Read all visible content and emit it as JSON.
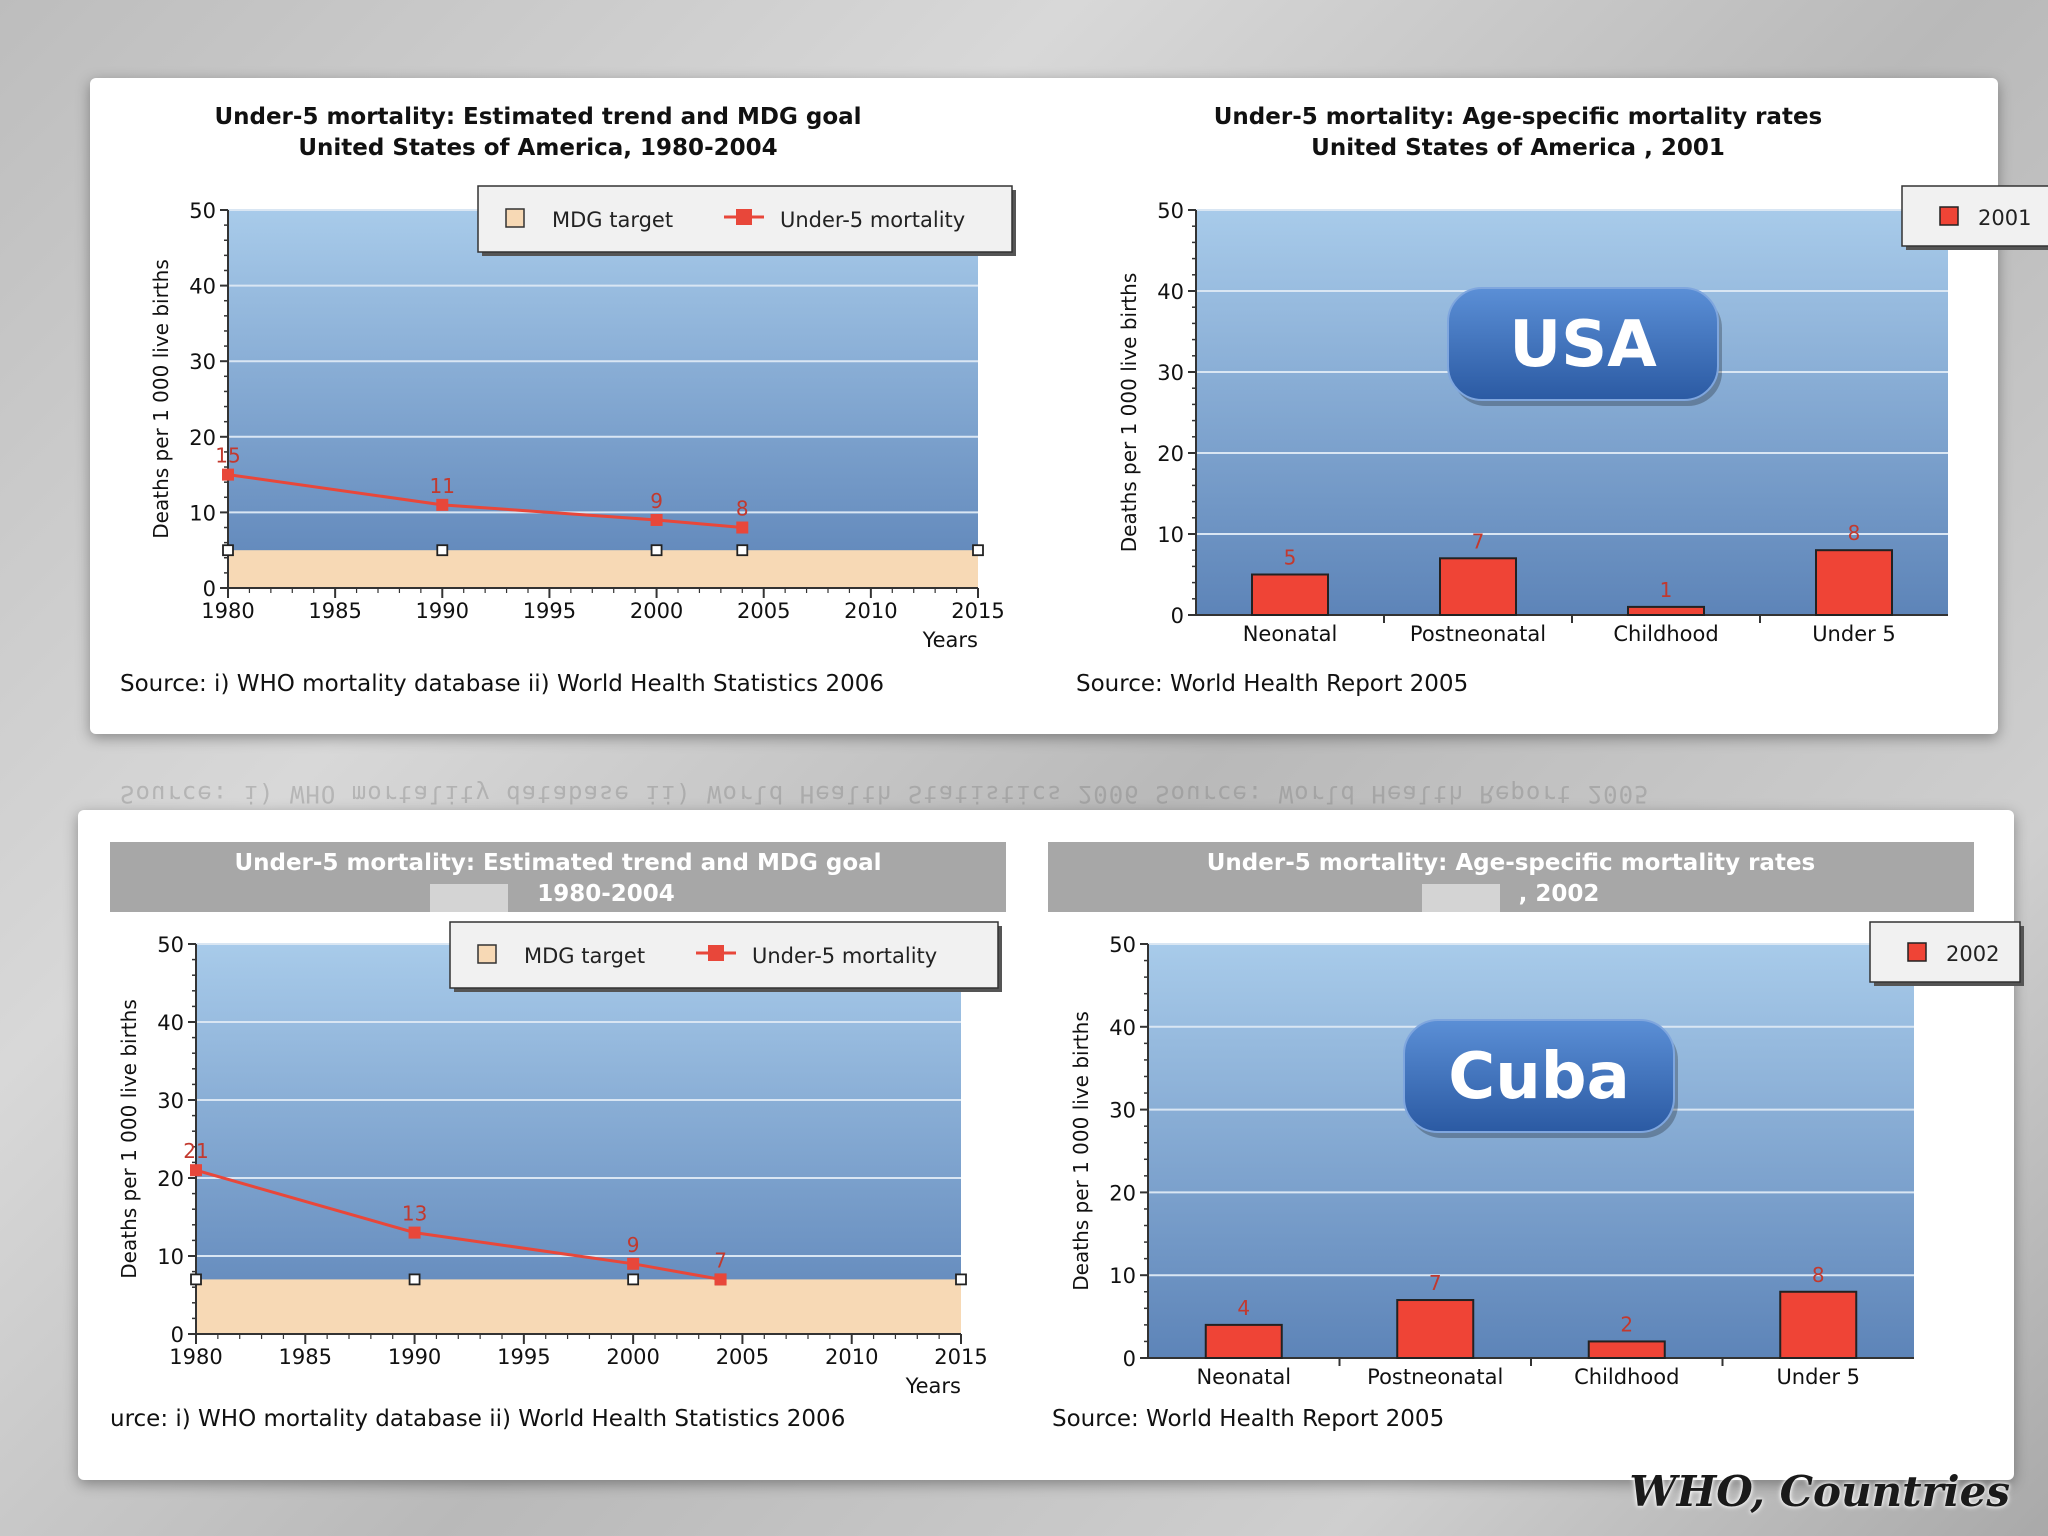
{
  "credit": "WHO, Countries",
  "reflection_text": "Source: i) WHO mortality database ii) World Health Statistics 2006        Source: World Health Report 2005",
  "colors": {
    "bar": "#ef4436",
    "line": "#e8473a",
    "target_fill": "#f7d9b5",
    "plot_top": "#a8cbea",
    "plot_bottom": "#5d84b8",
    "badge": "#3f6db3"
  },
  "chart_data": [
    {
      "id": "usa-trend",
      "type": "line",
      "title": "Under-5 mortality: Estimated trend and MDG goal",
      "subtitle": "United States of America, 1980-2004",
      "ylabel": "Deaths per 1 000 live births",
      "xlabel": "Years",
      "ylim": [
        0,
        50
      ],
      "yticks": [
        0,
        10,
        20,
        30,
        40,
        50
      ],
      "xlim": [
        1980,
        2015
      ],
      "xticks": [
        1980,
        1985,
        1990,
        1995,
        2000,
        2005,
        2010,
        2015
      ],
      "legend": [
        "MDG target",
        "Under-5 mortality"
      ],
      "series": [
        {
          "name": "Under-5 mortality",
          "x": [
            1980,
            1990,
            2000,
            2004
          ],
          "values": [
            15,
            11,
            9,
            8
          ],
          "labels": [
            "15",
            "11",
            "9",
            "8"
          ]
        },
        {
          "name": "MDG target",
          "x": [
            1980,
            1990,
            2000,
            2004,
            2015
          ],
          "values": [
            5,
            5,
            5,
            5,
            5
          ]
        }
      ],
      "source": "Source: i) WHO mortality database ii) World Health Statistics 2006"
    },
    {
      "id": "usa-age",
      "type": "bar",
      "title": "Under-5 mortality: Age-specific mortality rates",
      "subtitle": "United States of America , 2001",
      "ylabel": "Deaths per 1 000 live births",
      "ylim": [
        0,
        50
      ],
      "yticks": [
        0,
        10,
        20,
        30,
        40,
        50
      ],
      "categories": [
        "Neonatal",
        "Postneonatal",
        "Childhood",
        "Under 5"
      ],
      "series": [
        {
          "name": "2001",
          "values": [
            5,
            7,
            1,
            8
          ]
        }
      ],
      "badge": "USA",
      "source": "Source: World Health Report 2005"
    },
    {
      "id": "cuba-trend",
      "type": "line",
      "title": "Under-5 mortality: Estimated trend and MDG goal",
      "subtitle": "1980-2004",
      "ylabel": "Deaths per 1 000 live births",
      "xlabel": "Years",
      "ylim": [
        0,
        50
      ],
      "yticks": [
        0,
        10,
        20,
        30,
        40,
        50
      ],
      "xlim": [
        1980,
        2015
      ],
      "xticks": [
        1980,
        1985,
        1990,
        1995,
        2000,
        2005,
        2010,
        2015
      ],
      "legend": [
        "MDG target",
        "Under-5 mortality"
      ],
      "series": [
        {
          "name": "Under-5 mortality",
          "x": [
            1980,
            1990,
            2000,
            2004
          ],
          "values": [
            21,
            13,
            9,
            7
          ],
          "labels": [
            "21",
            "13",
            "9",
            "7"
          ]
        },
        {
          "name": "MDG target",
          "x": [
            1980,
            1990,
            2000,
            2004,
            2015
          ],
          "values": [
            7,
            7,
            7,
            7,
            7
          ]
        }
      ],
      "source": "urce: i) WHO mortality database ii) World Health Statistics 2006"
    },
    {
      "id": "cuba-age",
      "type": "bar",
      "title": "Under-5 mortality: Age-specific mortality rates",
      "subtitle": ", 2002",
      "ylabel": "Deaths per 1 000 live births",
      "ylim": [
        0,
        50
      ],
      "yticks": [
        0,
        10,
        20,
        30,
        40,
        50
      ],
      "categories": [
        "Neonatal",
        "Postneonatal",
        "Childhood",
        "Under 5"
      ],
      "series": [
        {
          "name": "2002",
          "values": [
            4,
            7,
            2,
            8
          ]
        }
      ],
      "badge": "Cuba",
      "source": "Source: World Health Report 2005"
    }
  ]
}
